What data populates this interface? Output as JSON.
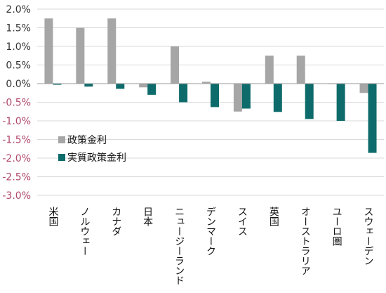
{
  "chart_data": {
    "type": "bar",
    "title": "",
    "xlabel": "",
    "ylabel": "",
    "ylim": [
      -3.0,
      2.0
    ],
    "ytick_step": 0.5,
    "grid": "horizontal",
    "legend_placement": "center-left",
    "ytick_labels": [
      "2.0%",
      "1.5%",
      "1.0%",
      "0.5%",
      "0.0%",
      "-0.5%",
      "-1.0%",
      "-1.5%",
      "-2.0%",
      "-2.5%",
      "-3.0%"
    ],
    "categories": [
      "米国",
      "ノルウェー",
      "カナダ",
      "日本",
      "ニュージーランド",
      "デンマーク",
      "スイス",
      "英国",
      "オーストラリア",
      "ユーロ圏",
      "スウェーデン"
    ],
    "series": [
      {
        "name": "政策金利",
        "color": "#a6a6a6",
        "values": [
          1.75,
          1.5,
          1.75,
          -0.1,
          1.0,
          0.05,
          -0.75,
          0.75,
          0.75,
          0.0,
          -0.25
        ]
      },
      {
        "name": "実質政策金利",
        "color": "#0e6b6b",
        "values": [
          -0.03,
          -0.08,
          -0.14,
          -0.3,
          -0.5,
          -0.63,
          -0.67,
          -0.76,
          -0.95,
          -1.0,
          -1.86
        ]
      }
    ]
  }
}
